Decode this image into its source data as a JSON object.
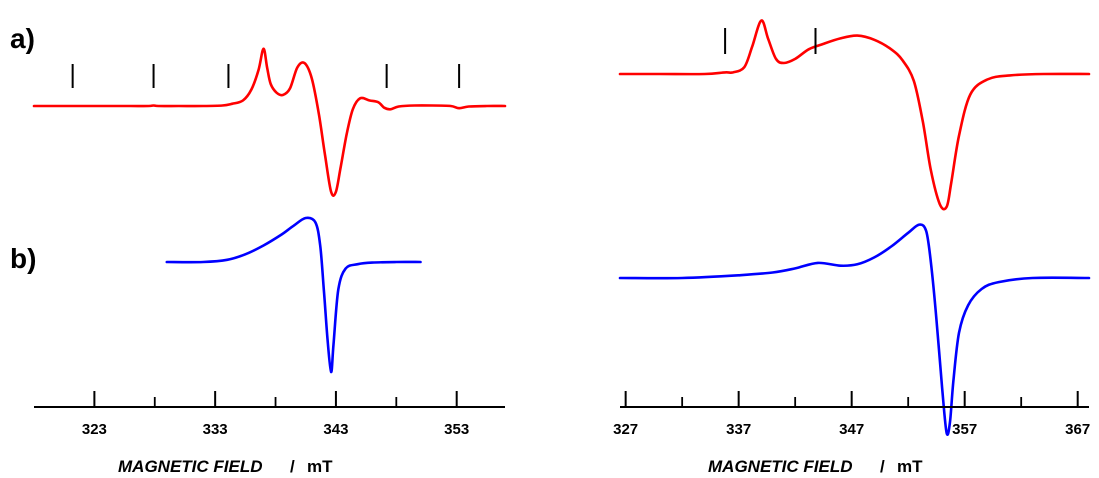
{
  "panel_labels": [
    "a)",
    "b)"
  ],
  "chart_data": [
    {
      "type": "line",
      "title": "",
      "xlabel": "MAGNETIC FIELD",
      "xlabel_separator": "/",
      "xunit": "mT",
      "xlim": [
        318,
        357
      ],
      "xticks_major": [
        323,
        333,
        343,
        353
      ],
      "xticks_minor": [
        328,
        338,
        348
      ],
      "legend": "none",
      "grid": false,
      "hyperfine_markers": [
        321.2,
        327.9,
        334.1,
        347.2,
        353.2
      ],
      "series": [
        {
          "color": "#ff0000",
          "x": [
            318,
            320,
            322,
            324,
            326,
            327.5,
            327.9,
            328.3,
            330,
            332,
            333.6,
            334.4,
            335.3,
            336.0,
            336.6,
            337.0,
            337.3,
            337.6,
            338.1,
            338.6,
            339.2,
            339.8,
            340.4,
            341.0,
            341.6,
            342.1,
            342.6,
            343.0,
            343.4,
            343.9,
            344.4,
            345.0,
            345.8,
            346.5,
            347.0,
            347.5,
            348.2,
            349.5,
            351.0,
            352.5,
            353.2,
            354.0,
            355.5,
            357
          ],
          "y": [
            0,
            0,
            0,
            0,
            0,
            0,
            0.05,
            0,
            0,
            0,
            0.05,
            0.2,
            0.5,
            1.5,
            3.3,
            5.2,
            3.5,
            2.0,
            1.2,
            1.0,
            1.6,
            3.5,
            3.9,
            2.5,
            -0.8,
            -4.5,
            -7.8,
            -7.8,
            -5.5,
            -2.5,
            -0.3,
            0.7,
            0.5,
            0.35,
            -0.15,
            -0.3,
            -0.05,
            0.05,
            0.05,
            0,
            -0.2,
            -0.05,
            0,
            0
          ]
        },
        {
          "color": "#0000ff",
          "x": [
            329,
            332,
            334,
            335.5,
            337,
            338.5,
            339.5,
            340.5,
            341.3,
            341.7,
            342.0,
            342.3,
            342.6,
            342.8,
            343.2,
            343.8,
            344.8,
            346,
            348,
            350
          ],
          "y": [
            0,
            0,
            0.2,
            0.7,
            1.5,
            2.5,
            3.3,
            4.0,
            3.6,
            1.5,
            -2.5,
            -7.0,
            -10.0,
            -7.5,
            -2.5,
            -0.6,
            -0.2,
            -0.05,
            0,
            0
          ]
        }
      ]
    },
    {
      "type": "line",
      "title": "",
      "xlabel": "MAGNETIC FIELD",
      "xlabel_separator": "/",
      "xunit": "mT",
      "xlim": [
        326.5,
        368
      ],
      "xticks_major": [
        327,
        337,
        347,
        357,
        367
      ],
      "xticks_minor": [
        332,
        342,
        352,
        362
      ],
      "legend": "none",
      "grid": false,
      "hyperfine_markers": [
        335.8,
        343.8
      ],
      "series": [
        {
          "color": "#ff0000",
          "x": [
            326.5,
            330,
            334,
            335.8,
            336.5,
            337.5,
            338.2,
            339.0,
            339.6,
            340.3,
            341.0,
            342.0,
            343.2,
            344.5,
            346.0,
            347.5,
            349.0,
            350.5,
            351.5,
            352.5,
            353.3,
            354.0,
            354.8,
            355.4,
            355.8,
            356.5,
            357.5,
            359,
            361,
            364,
            368
          ],
          "y": [
            0,
            0,
            0,
            0.12,
            0.12,
            0.5,
            2.0,
            3.9,
            2.6,
            1.1,
            0.8,
            1.1,
            1.8,
            2.2,
            2.6,
            2.8,
            2.5,
            1.8,
            1.0,
            -0.5,
            -3.5,
            -7.0,
            -9.5,
            -9.7,
            -8.0,
            -4.5,
            -1.5,
            -0.4,
            -0.1,
            0,
            0
          ]
        },
        {
          "color": "#0000ff",
          "x": [
            326.5,
            332,
            337,
            340,
            342,
            344,
            346,
            347.5,
            349,
            350.5,
            352,
            353.0,
            353.6,
            354.0,
            354.5,
            355.0,
            355.4,
            355.7,
            356.0,
            356.5,
            357.3,
            358.5,
            360,
            363,
            368
          ],
          "y": [
            0,
            0,
            0.2,
            0.4,
            0.7,
            1.1,
            0.9,
            1.0,
            1.5,
            2.3,
            3.3,
            3.9,
            3.4,
            1.2,
            -3.0,
            -8.0,
            -11.3,
            -10.5,
            -7.5,
            -4.0,
            -2.0,
            -0.8,
            -0.3,
            0,
            0
          ]
        }
      ]
    }
  ]
}
